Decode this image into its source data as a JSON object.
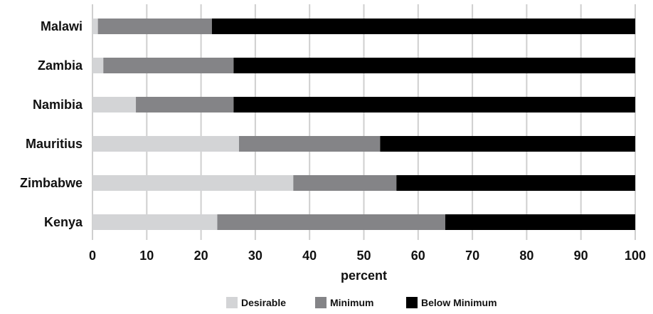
{
  "chart_data": {
    "type": "bar",
    "orientation": "horizontal",
    "stacked": true,
    "categories": [
      "Malawi",
      "Zambia",
      "Namibia",
      "Mauritius",
      "Zimbabwe",
      "Kenya"
    ],
    "series": [
      {
        "name": "Desirable",
        "color": "#d3d4d6",
        "values": [
          1,
          2,
          8,
          27,
          37,
          23
        ]
      },
      {
        "name": "Minimum",
        "color": "#848487",
        "values": [
          21,
          24,
          18,
          26,
          19,
          42
        ]
      },
      {
        "name": "Below Minimum",
        "color": "#000000",
        "values": [
          78,
          74,
          74,
          47,
          44,
          35
        ]
      }
    ],
    "xlabel": "percent",
    "ylabel": "",
    "xlim": [
      0,
      100
    ],
    "xticks": [
      "0",
      "10",
      "20",
      "30",
      "40",
      "50",
      "60",
      "70",
      "80",
      "90",
      "100"
    ],
    "grid": "vertical",
    "legend_position": "bottom"
  }
}
